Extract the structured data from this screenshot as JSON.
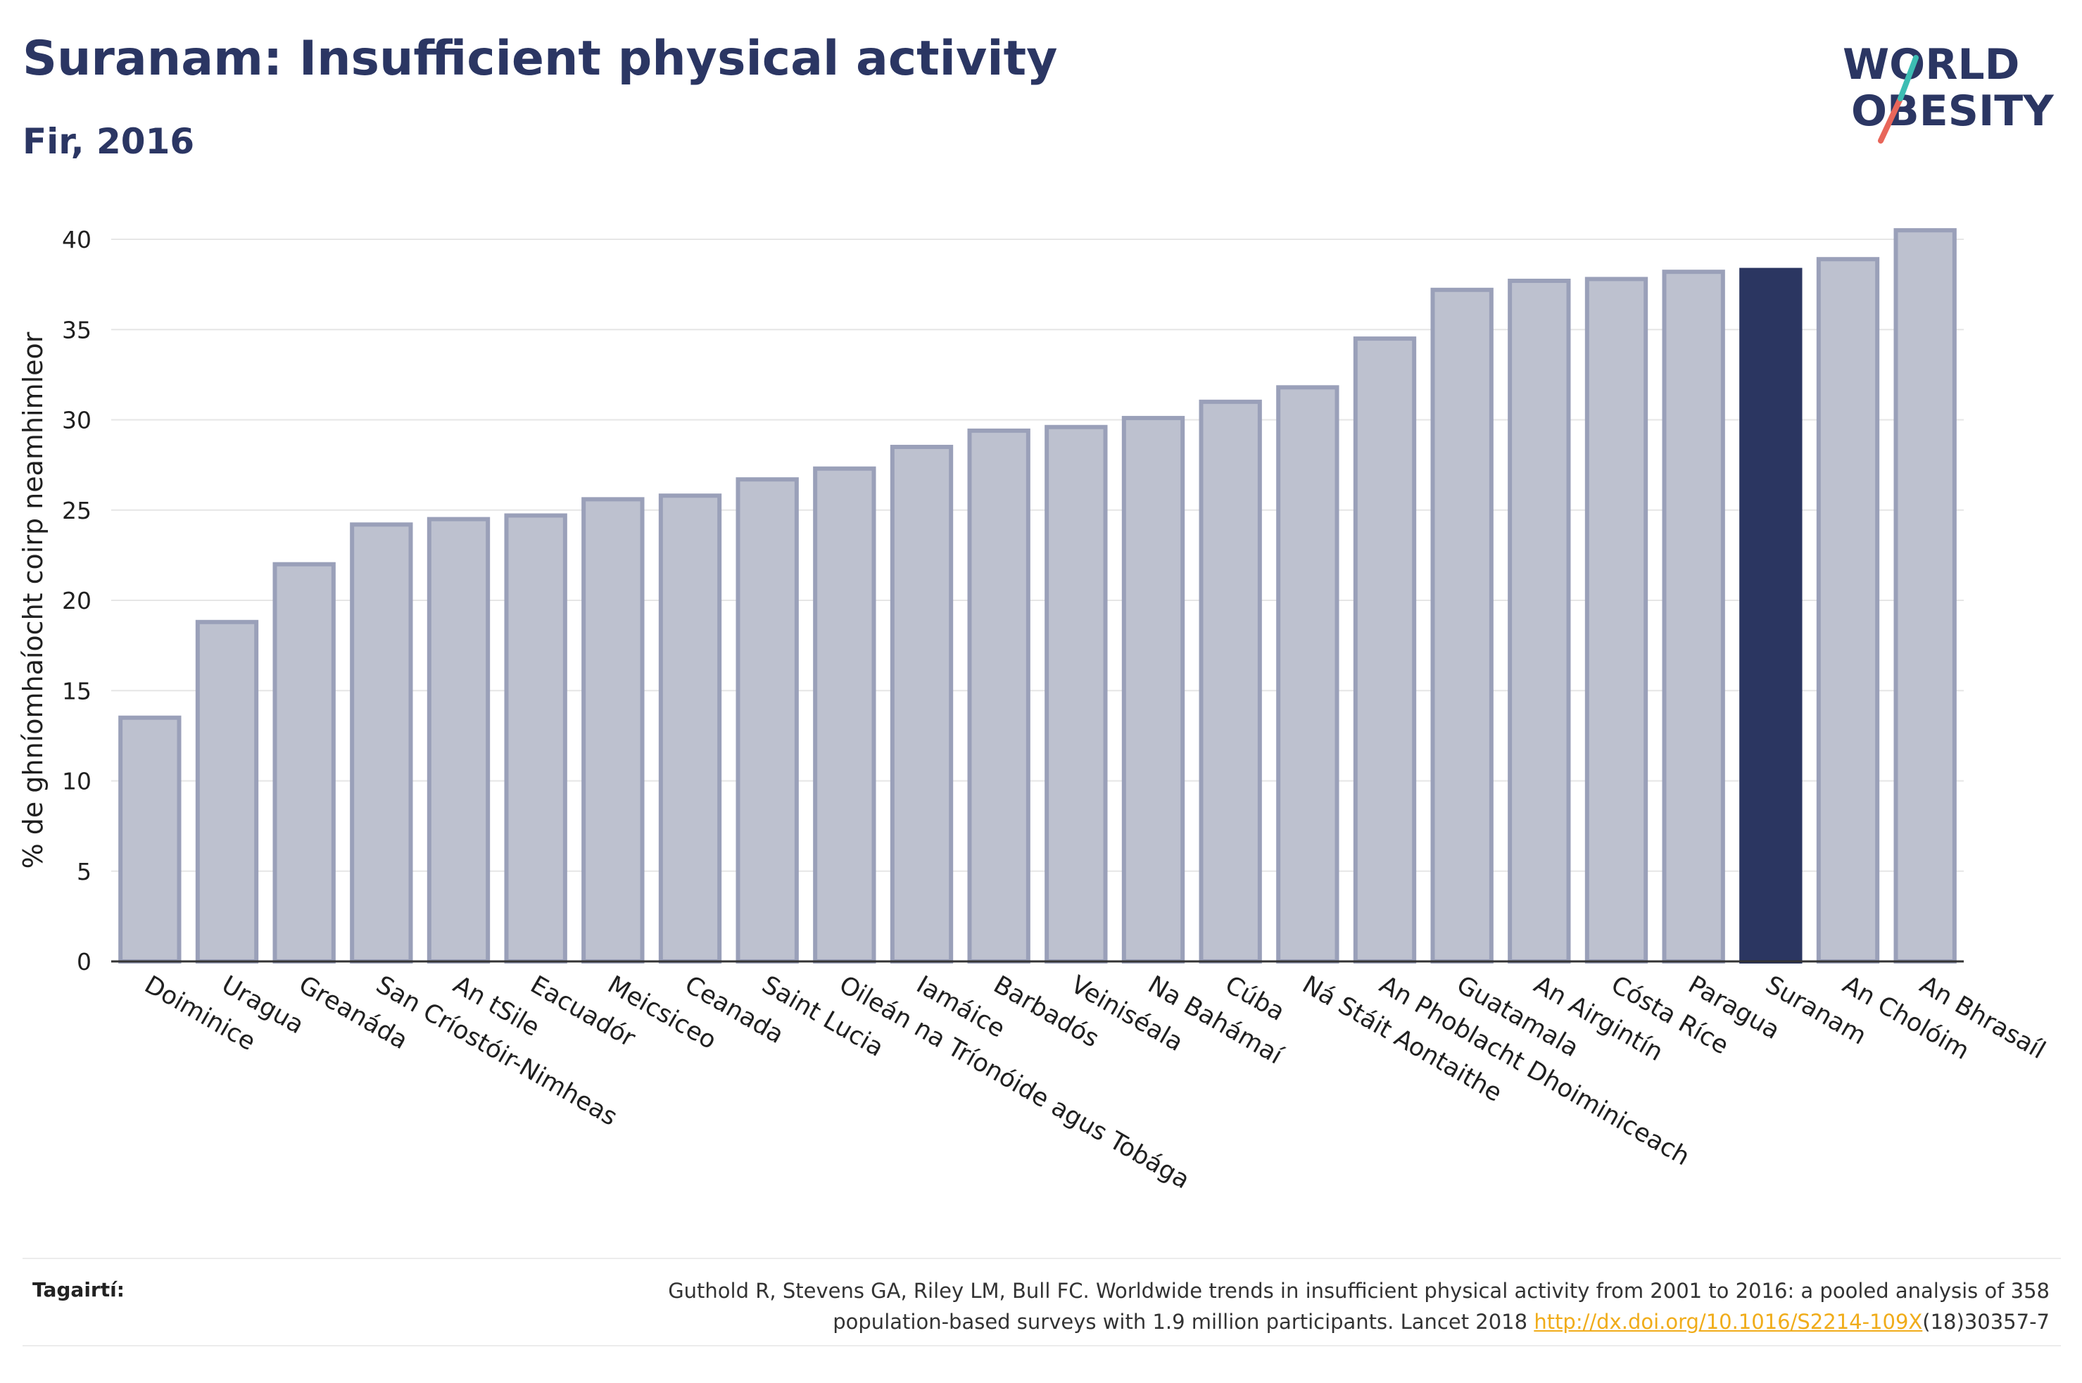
{
  "header": {
    "title": "Suranam: Insufficient physical activity",
    "subtitle": "Fir, 2016"
  },
  "logo": {
    "line1": "WORLD",
    "line2": "OBESITY"
  },
  "chart_data": {
    "type": "bar",
    "title": "Suranam: Insufficient physical activity",
    "subtitle": "Fir, 2016",
    "ylabel": "% de ghníomhaíocht coirp neamhimleor",
    "xlabel": "",
    "ylim": [
      0,
      42
    ],
    "yticks": [
      0,
      5,
      10,
      15,
      20,
      25,
      30,
      35,
      40
    ],
    "grid": true,
    "highlight": "Suranam",
    "colors": {
      "bar": "#bdc1cf",
      "bar_edge": "#9aa0b9",
      "highlight": "#2b3661"
    },
    "categories": [
      "Doiminice",
      "Uragua",
      "Greanáda",
      "San Críostóir-Nimheas",
      "An tSile",
      "Eacuadór",
      "Meicsiceo",
      "Ceanada",
      "Saint Lucia",
      "Oileán na Tríonóide agus Tobága",
      "Iamáice",
      "Barbadós",
      "Veiniséala",
      "Na Bahámaí",
      "Cúba",
      "Ná Stáit Aontaithe",
      "An Phoblacht Dhoiminiceach",
      "Guatamala",
      "An Airgintín",
      "Cósta Ríce",
      "Paragua",
      "Suranam",
      "An Cholóim",
      "An Bhrasaíl"
    ],
    "values": [
      13.5,
      18.8,
      22.0,
      24.2,
      24.5,
      24.7,
      25.6,
      25.8,
      26.7,
      27.3,
      28.5,
      29.4,
      29.6,
      30.1,
      31.0,
      31.8,
      34.5,
      37.2,
      37.7,
      37.8,
      38.2,
      38.3,
      38.9,
      40.5
    ]
  },
  "footer": {
    "ref_label": "Tagairtí:",
    "ref_line1": "Guthold R, Stevens GA, Riley LM, Bull FC. Worldwide trends in insufficient physical activity from 2001 to 2016: a pooled analysis of 358",
    "ref_line2_pre": "population-based surveys with 1.9 million participants. Lancet 2018 ",
    "ref_link": "http://dx.doi.org/10.1016/S2214-109X",
    "ref_line2_post": "(18)30357-7"
  }
}
